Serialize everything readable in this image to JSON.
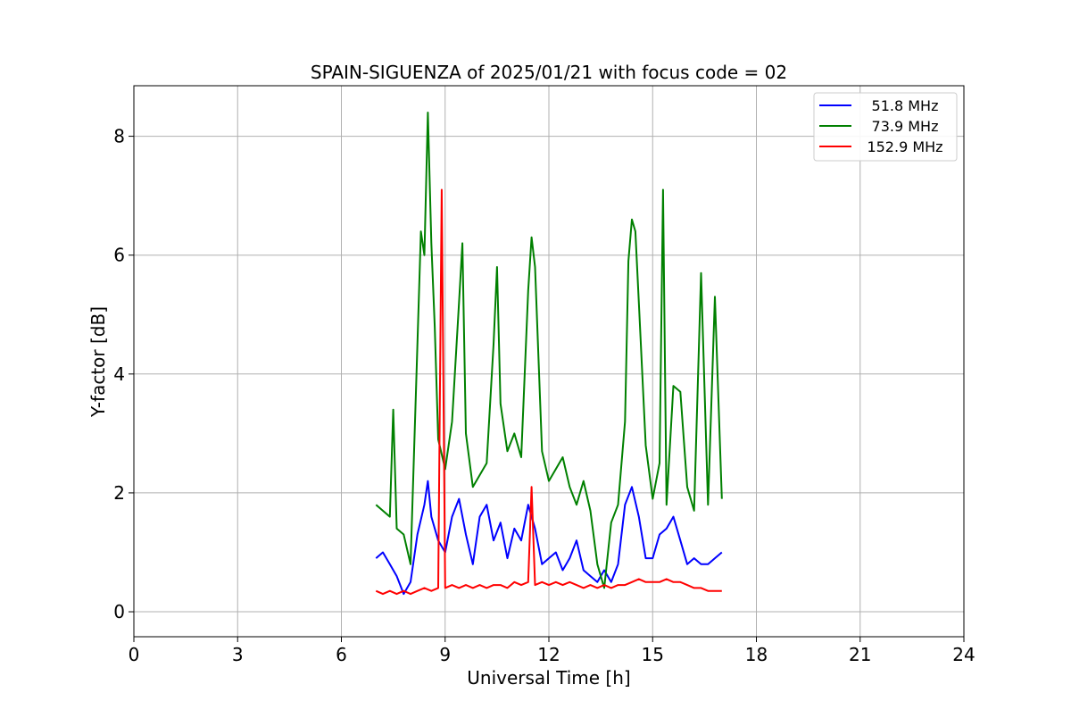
{
  "chart_data": {
    "type": "line",
    "title": "SPAIN-SIGUENZA of 2025/01/21 with focus code = 02",
    "xlabel": "Universal Time [h]",
    "ylabel": "Y-factor [dB]",
    "xlim": [
      0,
      24
    ],
    "ylim": [
      -0.42,
      8.85
    ],
    "xticks": [
      0,
      3,
      6,
      9,
      12,
      15,
      18,
      21,
      24
    ],
    "yticks": [
      0,
      2,
      4,
      6,
      8
    ],
    "grid": true,
    "legend_position": "top-right",
    "series": [
      {
        "name": "  51.8 MHz",
        "color": "#0000ff",
        "x": [
          7.0,
          7.2,
          7.4,
          7.6,
          7.8,
          8.0,
          8.2,
          8.4,
          8.5,
          8.6,
          8.8,
          9.0,
          9.2,
          9.4,
          9.6,
          9.8,
          10.0,
          10.2,
          10.4,
          10.6,
          10.8,
          11.0,
          11.2,
          11.4,
          11.6,
          11.8,
          12.0,
          12.2,
          12.4,
          12.6,
          12.8,
          13.0,
          13.2,
          13.4,
          13.6,
          13.8,
          14.0,
          14.2,
          14.4,
          14.6,
          14.8,
          15.0,
          15.2,
          15.4,
          15.6,
          15.8,
          16.0,
          16.2,
          16.4,
          16.6,
          16.8,
          17.0
        ],
        "values": [
          0.9,
          1.0,
          0.8,
          0.6,
          0.3,
          0.5,
          1.3,
          1.8,
          2.2,
          1.6,
          1.2,
          1.0,
          1.6,
          1.9,
          1.3,
          0.8,
          1.6,
          1.8,
          1.2,
          1.5,
          0.9,
          1.4,
          1.2,
          1.8,
          1.4,
          0.8,
          0.9,
          1.0,
          0.7,
          0.9,
          1.2,
          0.7,
          0.6,
          0.5,
          0.7,
          0.5,
          0.8,
          1.8,
          2.1,
          1.6,
          0.9,
          0.9,
          1.3,
          1.4,
          1.6,
          1.2,
          0.8,
          0.9,
          0.8,
          0.8,
          0.9,
          1.0
        ]
      },
      {
        "name": "  73.9 MHz",
        "color": "#008000",
        "x": [
          7.0,
          7.2,
          7.4,
          7.5,
          7.6,
          7.8,
          8.0,
          8.2,
          8.3,
          8.4,
          8.5,
          8.6,
          8.7,
          8.8,
          9.0,
          9.2,
          9.4,
          9.5,
          9.6,
          9.8,
          10.0,
          10.2,
          10.4,
          10.5,
          10.6,
          10.8,
          11.0,
          11.2,
          11.4,
          11.5,
          11.6,
          11.8,
          12.0,
          12.2,
          12.4,
          12.6,
          12.8,
          13.0,
          13.2,
          13.4,
          13.6,
          13.8,
          14.0,
          14.2,
          14.3,
          14.4,
          14.5,
          14.6,
          14.8,
          15.0,
          15.2,
          15.3,
          15.4,
          15.6,
          15.8,
          16.0,
          16.2,
          16.4,
          16.6,
          16.8,
          17.0
        ],
        "values": [
          1.8,
          1.7,
          1.6,
          3.4,
          1.4,
          1.3,
          0.8,
          4.5,
          6.4,
          6.0,
          8.4,
          6.2,
          4.8,
          2.9,
          2.4,
          3.2,
          5.2,
          6.2,
          3.0,
          2.1,
          2.3,
          2.5,
          4.5,
          5.8,
          3.5,
          2.7,
          3.0,
          2.6,
          5.4,
          6.3,
          5.8,
          2.7,
          2.2,
          2.4,
          2.6,
          2.1,
          1.8,
          2.2,
          1.7,
          0.8,
          0.4,
          1.5,
          1.8,
          3.2,
          5.9,
          6.6,
          6.4,
          5.2,
          2.8,
          1.9,
          2.5,
          7.1,
          1.8,
          3.8,
          3.7,
          2.1,
          1.7,
          5.7,
          1.8,
          5.3,
          1.9
        ]
      },
      {
        "name": "152.9 MHz",
        "color": "#ff0000",
        "x": [
          7.0,
          7.2,
          7.4,
          7.6,
          7.8,
          8.0,
          8.2,
          8.4,
          8.6,
          8.8,
          8.9,
          9.0,
          9.2,
          9.4,
          9.6,
          9.8,
          10.0,
          10.2,
          10.4,
          10.6,
          10.8,
          11.0,
          11.2,
          11.4,
          11.5,
          11.6,
          11.8,
          12.0,
          12.2,
          12.4,
          12.6,
          12.8,
          13.0,
          13.2,
          13.4,
          13.6,
          13.8,
          14.0,
          14.2,
          14.4,
          14.6,
          14.8,
          15.0,
          15.2,
          15.4,
          15.6,
          15.8,
          16.0,
          16.2,
          16.4,
          16.6,
          16.8,
          17.0
        ],
        "values": [
          0.35,
          0.3,
          0.35,
          0.3,
          0.35,
          0.3,
          0.35,
          0.4,
          0.35,
          0.4,
          7.1,
          0.4,
          0.45,
          0.4,
          0.45,
          0.4,
          0.45,
          0.4,
          0.45,
          0.45,
          0.4,
          0.5,
          0.45,
          0.5,
          2.1,
          0.45,
          0.5,
          0.45,
          0.5,
          0.45,
          0.5,
          0.45,
          0.4,
          0.45,
          0.4,
          0.45,
          0.4,
          0.45,
          0.45,
          0.5,
          0.55,
          0.5,
          0.5,
          0.5,
          0.55,
          0.5,
          0.5,
          0.45,
          0.4,
          0.4,
          0.35,
          0.35,
          0.35
        ]
      }
    ]
  }
}
